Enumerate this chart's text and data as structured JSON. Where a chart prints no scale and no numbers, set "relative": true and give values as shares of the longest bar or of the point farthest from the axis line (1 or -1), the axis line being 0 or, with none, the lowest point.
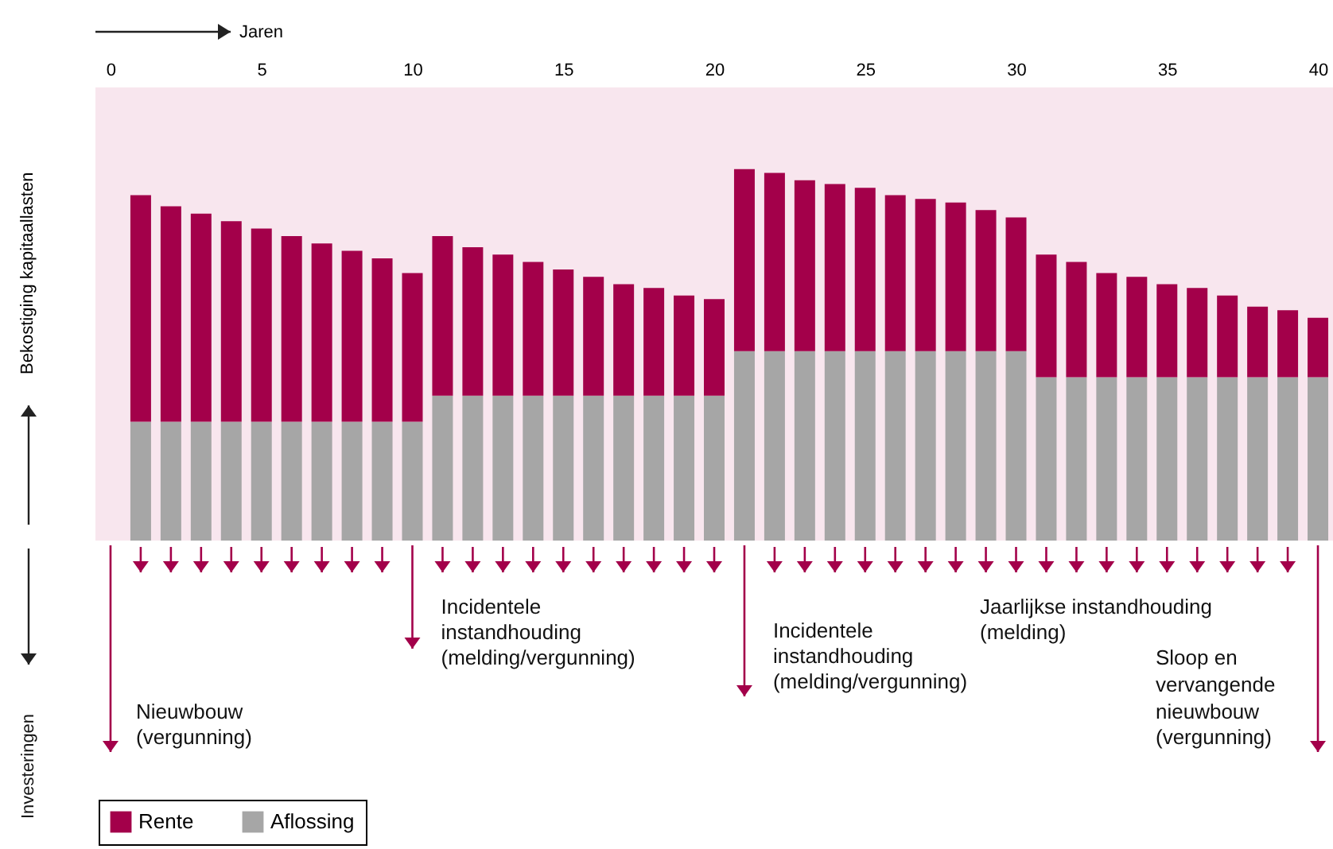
{
  "chart_data": {
    "type": "bar",
    "stacked": true,
    "relative": true,
    "xlabel": "Jaren",
    "ylabel": "Bekostiging kapitaallasten",
    "legend": "bottom left",
    "x": [
      1,
      2,
      3,
      4,
      5,
      6,
      7,
      8,
      9,
      10,
      11,
      12,
      13,
      14,
      15,
      16,
      17,
      18,
      19,
      20,
      21,
      22,
      23,
      24,
      25,
      26,
      27,
      28,
      29,
      30,
      31,
      32,
      33,
      34,
      35,
      36,
      37,
      38,
      39,
      40
    ],
    "xlim": [
      -0.5,
      40.5
    ],
    "xticks": [
      0,
      5,
      10,
      15,
      20,
      25,
      30,
      35,
      40
    ],
    "series": [
      {
        "name": "Aflossing",
        "color": "#a6a6a6",
        "values": [
          0.32,
          0.32,
          0.32,
          0.32,
          0.32,
          0.32,
          0.32,
          0.32,
          0.32,
          0.32,
          0.39,
          0.39,
          0.39,
          0.39,
          0.39,
          0.39,
          0.39,
          0.39,
          0.39,
          0.39,
          0.51,
          0.51,
          0.51,
          0.51,
          0.51,
          0.51,
          0.51,
          0.51,
          0.51,
          0.51,
          0.44,
          0.44,
          0.44,
          0.44,
          0.44,
          0.44,
          0.44,
          0.44,
          0.44,
          0.44
        ]
      },
      {
        "name": "Rente",
        "color": "#a3004a",
        "values": [
          0.61,
          0.58,
          0.56,
          0.54,
          0.52,
          0.5,
          0.48,
          0.46,
          0.44,
          0.4,
          0.43,
          0.4,
          0.38,
          0.36,
          0.34,
          0.32,
          0.3,
          0.29,
          0.27,
          0.26,
          0.49,
          0.48,
          0.46,
          0.45,
          0.44,
          0.42,
          0.41,
          0.4,
          0.38,
          0.36,
          0.33,
          0.31,
          0.28,
          0.27,
          0.25,
          0.24,
          0.22,
          0.19,
          0.18,
          0.16
        ]
      }
    ],
    "annotations": [
      "Nieuwbouw\n(vergunning)",
      "Incidentele\ninstandhouding\n(melding/vergunning)",
      "Incidentele\ninstandhouding\n(melding/vergunning)",
      "Jaarlijkse instandhouding\n(melding)",
      "Sloop en\nvervangende\nnieuwbouw\n(vergunning)",
      "Investeringen"
    ]
  }
}
